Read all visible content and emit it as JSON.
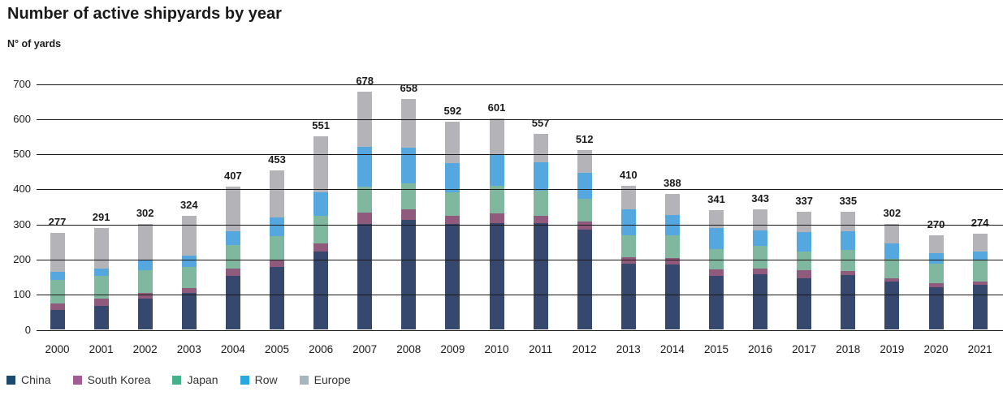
{
  "header": {
    "title": "Number of active shipyards by year",
    "subtitle": "N° of yards"
  },
  "chart_data": {
    "type": "bar",
    "stacked": true,
    "title": "Number of active shipyards by year",
    "ylabel": "N° of yards",
    "xlabel": "",
    "ylim": [
      0,
      700
    ],
    "ytick_interval": 100,
    "ytick_labels": [
      "0",
      "100",
      "200",
      "300",
      "400",
      "500",
      "600",
      "700"
    ],
    "grid": "horizontal",
    "legend_position": "bottom-left",
    "categories": [
      "2000",
      "2001",
      "2002",
      "2003",
      "2004",
      "2005",
      "2006",
      "2007",
      "2008",
      "2009",
      "2010",
      "2011",
      "2012",
      "2013",
      "2014",
      "2015",
      "2016",
      "2017",
      "2018",
      "2019",
      "2020",
      "2021"
    ],
    "series": [
      {
        "name": "China",
        "color": "#36486D",
        "values": [
          57,
          69,
          90,
          105,
          154,
          178,
          222,
          302,
          312,
          301,
          303,
          303,
          286,
          189,
          187,
          154,
          158,
          146,
          156,
          138,
          122,
          129
        ]
      },
      {
        "name": "South Korea",
        "color": "#8F5A7C",
        "values": [
          18,
          21,
          14,
          14,
          21,
          21,
          25,
          32,
          30,
          23,
          29,
          22,
          22,
          17,
          18,
          17,
          17,
          23,
          11,
          9,
          10,
          9
        ]
      },
      {
        "name": "Japan",
        "color": "#7FB89E",
        "values": [
          68,
          64,
          66,
          59,
          66,
          68,
          77,
          74,
          75,
          68,
          77,
          71,
          66,
          64,
          63,
          60,
          64,
          53,
          60,
          55,
          56,
          60
        ]
      },
      {
        "name": "Row",
        "color": "#55A7E0",
        "values": [
          23,
          21,
          27,
          34,
          39,
          53,
          67,
          112,
          101,
          82,
          90,
          80,
          74,
          72,
          58,
          59,
          43,
          56,
          53,
          43,
          31,
          25
        ]
      },
      {
        "name": "Europe",
        "color": "#B4B4B8",
        "values": [
          111,
          116,
          105,
          112,
          127,
          133,
          160,
          158,
          140,
          118,
          102,
          81,
          64,
          68,
          62,
          51,
          61,
          59,
          55,
          57,
          51,
          51
        ]
      }
    ],
    "totals": [
      "277",
      "291",
      "302",
      "324",
      "407",
      "453",
      "551",
      "678",
      "658",
      "592",
      "601",
      "557",
      "512",
      "410",
      "388",
      "341",
      "343",
      "337",
      "335",
      "302",
      "270",
      "274"
    ],
    "legend": [
      {
        "label": "China",
        "swatch_color": "#1C4A6E"
      },
      {
        "label": "South Korea",
        "swatch_color": "#A15C92"
      },
      {
        "label": "Japan",
        "swatch_color": "#45B08C"
      },
      {
        "label": "Row",
        "swatch_color": "#29A8E0"
      },
      {
        "label": "Europe",
        "swatch_color": "#A5B6BD"
      }
    ]
  }
}
